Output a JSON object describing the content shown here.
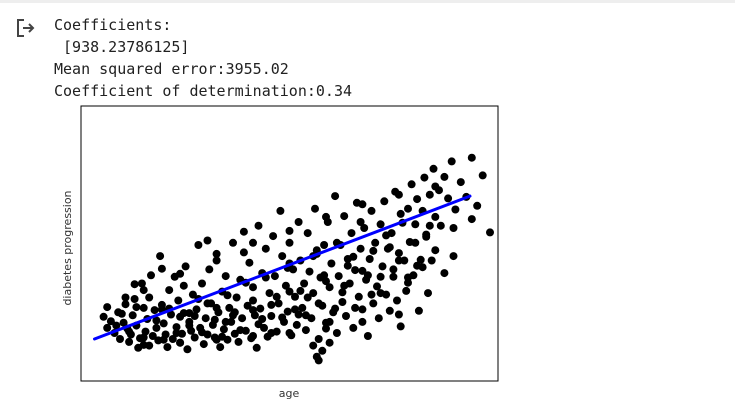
{
  "output": {
    "lines": [
      "Coefficients:",
      " [938.23786125]",
      "Mean squared error:3955.02",
      "Coefficient of determination:0.34"
    ]
  },
  "chart_data": {
    "type": "scatter",
    "title": "",
    "xlabel": "age",
    "ylabel": "diabetes progression",
    "xlim": [
      -0.11,
      0.11
    ],
    "ylim": [
      10,
      360
    ],
    "grid": false,
    "ticks": false,
    "colors": {
      "points": "#000000",
      "line": "#0000ff"
    },
    "regression_line": {
      "x": [
        -0.107,
        0.099
      ],
      "y": [
        56,
        249
      ]
    },
    "points": [
      [
        -0.102,
        86
      ],
      [
        -0.1,
        71
      ],
      [
        -0.098,
        80
      ],
      [
        -0.096,
        64
      ],
      [
        -0.094,
        92
      ],
      [
        -0.093,
        56
      ],
      [
        -0.091,
        78
      ],
      [
        -0.09,
        103
      ],
      [
        -0.089,
        70
      ],
      [
        -0.088,
        52
      ],
      [
        -0.087,
        62
      ],
      [
        -0.086,
        88
      ],
      [
        -0.085,
        110
      ],
      [
        -0.084,
        74
      ],
      [
        -0.083,
        44
      ],
      [
        -0.082,
        57
      ],
      [
        -0.081,
        131
      ],
      [
        -0.08,
        98
      ],
      [
        -0.079,
        66
      ],
      [
        -0.078,
        83
      ],
      [
        -0.077,
        47
      ],
      [
        -0.076,
        142
      ],
      [
        -0.075,
        60
      ],
      [
        -0.074,
        95
      ],
      [
        -0.073,
        71
      ],
      [
        -0.072,
        54
      ],
      [
        -0.071,
        168
      ],
      [
        -0.07,
        102
      ],
      [
        -0.069,
        77
      ],
      [
        -0.068,
        62
      ],
      [
        -0.067,
        45
      ],
      [
        -0.066,
        122
      ],
      [
        -0.065,
        89
      ],
      [
        -0.064,
        56
      ],
      [
        -0.063,
        140
      ],
      [
        -0.062,
        72
      ],
      [
        -0.061,
        108
      ],
      [
        -0.06,
        51
      ],
      [
        -0.059,
        63
      ],
      [
        -0.058,
        91
      ],
      [
        -0.057,
        154
      ],
      [
        -0.056,
        42
      ],
      [
        -0.055,
        79
      ],
      [
        -0.054,
        67
      ],
      [
        -0.053,
        116
      ],
      [
        -0.052,
        58
      ],
      [
        -0.051,
        96
      ],
      [
        -0.05,
        183
      ],
      [
        -0.049,
        71
      ],
      [
        -0.048,
        131
      ],
      [
        -0.047,
        49
      ],
      [
        -0.046,
        84
      ],
      [
        -0.045,
        62
      ],
      [
        -0.044,
        150
      ],
      [
        -0.043,
        104
      ],
      [
        -0.042,
        75
      ],
      [
        -0.041,
        58
      ],
      [
        -0.04,
        162
      ],
      [
        -0.039,
        92
      ],
      [
        -0.038,
        45
      ],
      [
        -0.037,
        120
      ],
      [
        -0.036,
        69
      ],
      [
        -0.035,
        141
      ],
      [
        -0.034,
        55
      ],
      [
        -0.033,
        98
      ],
      [
        -0.032,
        79
      ],
      [
        -0.031,
        186
      ],
      [
        -0.03,
        63
      ],
      [
        -0.029,
        112
      ],
      [
        -0.028,
        52
      ],
      [
        -0.027,
        136
      ],
      [
        -0.026,
        84
      ],
      [
        -0.025,
        173
      ],
      [
        -0.024,
        67
      ],
      [
        -0.023,
        101
      ],
      [
        -0.022,
        159
      ],
      [
        -0.021,
        57
      ],
      [
        -0.02,
        126
      ],
      [
        -0.019,
        88
      ],
      [
        -0.018,
        44
      ],
      [
        -0.017,
        209
      ],
      [
        -0.016,
        97
      ],
      [
        -0.015,
        145
      ],
      [
        -0.014,
        71
      ],
      [
        -0.013,
        178
      ],
      [
        -0.012,
        59
      ],
      [
        -0.011,
        118
      ],
      [
        -0.01,
        87
      ],
      [
        -0.009,
        195
      ],
      [
        -0.008,
        141
      ],
      [
        -0.007,
        66
      ],
      [
        -0.006,
        104
      ],
      [
        -0.005,
        229
      ],
      [
        -0.004,
        168
      ],
      [
        -0.003,
        79
      ],
      [
        -0.002,
        128
      ],
      [
        -0.001,
        93
      ],
      [
        0.0,
        186
      ],
      [
        0.001,
        61
      ],
      [
        0.002,
        150
      ],
      [
        0.003,
        113
      ],
      [
        0.004,
        75
      ],
      [
        0.005,
        214
      ],
      [
        0.006,
        162
      ],
      [
        0.007,
        98
      ],
      [
        0.008,
        131
      ],
      [
        0.009,
        68
      ],
      [
        0.01,
        199
      ],
      [
        0.011,
        147
      ],
      [
        0.012,
        84
      ],
      [
        0.013,
        118
      ],
      [
        0.014,
        232
      ],
      [
        0.015,
        171
      ],
      [
        0.016,
        56
      ],
      [
        0.017,
        139
      ],
      [
        0.018,
        101
      ],
      [
        0.019,
        183
      ],
      [
        0.02,
        78
      ],
      [
        0.021,
        214
      ],
      [
        0.022,
        126
      ],
      [
        0.023,
        158
      ],
      [
        0.024,
        92
      ],
      [
        0.025,
        249
      ],
      [
        0.026,
        64
      ],
      [
        0.027,
        141
      ],
      [
        0.028,
        183
      ],
      [
        0.029,
        106
      ],
      [
        0.03,
        222
      ],
      [
        0.031,
        87
      ],
      [
        0.032,
        164
      ],
      [
        0.033,
        131
      ],
      [
        0.034,
        199
      ],
      [
        0.035,
        71
      ],
      [
        0.036,
        149
      ],
      [
        0.037,
        240
      ],
      [
        0.038,
        113
      ],
      [
        0.039,
        178
      ],
      [
        0.04,
        96
      ],
      [
        0.041,
        206
      ],
      [
        0.042,
        136
      ],
      [
        0.043,
        60
      ],
      [
        0.044,
        164
      ],
      [
        0.045,
        229
      ],
      [
        0.046,
        104
      ],
      [
        0.047,
        186
      ],
      [
        0.048,
        127
      ],
      [
        0.049,
        84
      ],
      [
        0.05,
        211
      ],
      [
        0.051,
        154
      ],
      [
        0.052,
        242
      ],
      [
        0.053,
        116
      ],
      [
        0.054,
        178
      ],
      [
        0.055,
        94
      ],
      [
        0.056,
        199
      ],
      [
        0.057,
        140
      ],
      [
        0.058,
        255
      ],
      [
        0.059,
        108
      ],
      [
        0.06,
        172
      ],
      [
        0.061,
        73
      ],
      [
        0.062,
        213
      ],
      [
        0.063,
        162
      ],
      [
        0.064,
        121
      ],
      [
        0.065,
        232
      ],
      [
        0.066,
        187
      ],
      [
        0.067,
        265
      ],
      [
        0.068,
        142
      ],
      [
        0.069,
        211
      ],
      [
        0.07,
        245
      ],
      [
        0.071,
        94
      ],
      [
        0.072,
        163
      ],
      [
        0.073,
        229
      ],
      [
        0.074,
        274
      ],
      [
        0.075,
        197
      ],
      [
        0.076,
        118
      ],
      [
        0.077,
        251
      ],
      [
        0.078,
        162
      ],
      [
        0.079,
        286
      ],
      [
        0.08,
        221
      ],
      [
        0.082,
        257
      ],
      [
        0.083,
        209
      ],
      [
        0.085,
        275
      ],
      [
        0.087,
        246
      ],
      [
        0.089,
        296
      ],
      [
        0.091,
        231
      ],
      [
        0.094,
        268
      ],
      [
        0.097,
        248
      ],
      [
        0.1,
        301
      ],
      [
        0.103,
        236
      ],
      [
        0.106,
        277
      ],
      [
        -0.095,
        74
      ],
      [
        -0.092,
        90
      ],
      [
        -0.088,
        66
      ],
      [
        -0.084,
        99
      ],
      [
        -0.08,
        58
      ],
      [
        -0.077,
        112
      ],
      [
        -0.073,
        81
      ],
      [
        -0.069,
        55
      ],
      [
        -0.066,
        97
      ],
      [
        -0.062,
        64
      ],
      [
        -0.058,
        128
      ],
      [
        -0.055,
        74
      ],
      [
        -0.052,
        87
      ],
      [
        -0.048,
        65
      ],
      [
        -0.045,
        104
      ],
      [
        -0.041,
        82
      ],
      [
        -0.037,
        59
      ],
      [
        -0.034,
        115
      ],
      [
        -0.031,
        88
      ],
      [
        -0.027,
        68
      ],
      [
        -0.024,
        132
      ],
      [
        -0.02,
        95
      ],
      [
        -0.017,
        76
      ],
      [
        -0.013,
        139
      ],
      [
        -0.01,
        64
      ],
      [
        -0.007,
        113
      ],
      [
        -0.004,
        85
      ],
      [
        -0.001,
        152
      ],
      [
        0.003,
        96
      ],
      [
        0.006,
        121
      ],
      [
        0.009,
        88
      ],
      [
        0.013,
        168
      ],
      [
        0.016,
        104
      ],
      [
        0.019,
        142
      ],
      [
        0.022,
        79
      ],
      [
        0.026,
        186
      ],
      [
        0.029,
        119
      ],
      [
        0.032,
        155
      ],
      [
        0.036,
        98
      ],
      [
        0.039,
        214
      ],
      [
        0.043,
        142
      ],
      [
        0.046,
        175
      ],
      [
        0.05,
        118
      ],
      [
        0.053,
        196
      ],
      [
        0.057,
        150
      ],
      [
        0.061,
        225
      ],
      [
        0.065,
        139
      ],
      [
        0.069,
        186
      ],
      [
        0.073,
        153
      ],
      [
        0.077,
        209
      ],
      [
        -0.06,
        86
      ],
      [
        -0.05,
        110
      ],
      [
        -0.04,
        98
      ],
      [
        -0.03,
        92
      ],
      [
        -0.02,
        108
      ],
      [
        -0.01,
        102
      ],
      [
        0.0,
        120
      ],
      [
        0.01,
        112
      ],
      [
        0.02,
        134
      ],
      [
        0.03,
        128
      ],
      [
        0.04,
        148
      ],
      [
        0.05,
        140
      ],
      [
        0.06,
        162
      ],
      [
        0.07,
        155
      ],
      [
        0.08,
        176
      ],
      [
        0.09,
        168
      ],
      [
        -0.07,
        96
      ],
      [
        -0.055,
        91
      ],
      [
        -0.035,
        79
      ],
      [
        -0.015,
        83
      ],
      [
        0.005,
        89
      ],
      [
        0.025,
        97
      ],
      [
        0.045,
        116
      ],
      [
        0.065,
        132
      ],
      [
        0.085,
        145
      ],
      [
        -0.09,
        112
      ],
      [
        -0.08,
        122
      ],
      [
        -0.06,
        144
      ],
      [
        -0.04,
        171
      ],
      [
        -0.02,
        186
      ],
      [
        0.0,
        202
      ],
      [
        0.02,
        221
      ],
      [
        0.04,
        238
      ],
      [
        0.06,
        251
      ],
      [
        0.08,
        262
      ],
      [
        -0.1,
        99
      ],
      [
        -0.085,
        130
      ],
      [
        -0.07,
        151
      ],
      [
        -0.045,
        189
      ],
      [
        -0.025,
        201
      ],
      [
        0.0,
        158
      ],
      [
        0.015,
        176
      ],
      [
        0.035,
        167
      ],
      [
        0.055,
        180
      ],
      [
        0.075,
        194
      ],
      [
        0.09,
        206
      ],
      [
        0.1,
        218
      ],
      [
        0.06,
        89
      ],
      [
        0.04,
        79
      ],
      [
        0.02,
        70
      ],
      [
        0.0,
        64
      ],
      [
        -0.02,
        60
      ],
      [
        -0.04,
        55
      ],
      [
        -0.06,
        51
      ],
      [
        -0.08,
        48
      ],
      [
        0.015,
        32
      ],
      [
        0.016,
        27
      ],
      [
        0.018,
        40
      ],
      [
        0.013,
        47
      ],
      [
        0.022,
        51
      ],
      [
        0.11,
        200
      ]
    ]
  }
}
